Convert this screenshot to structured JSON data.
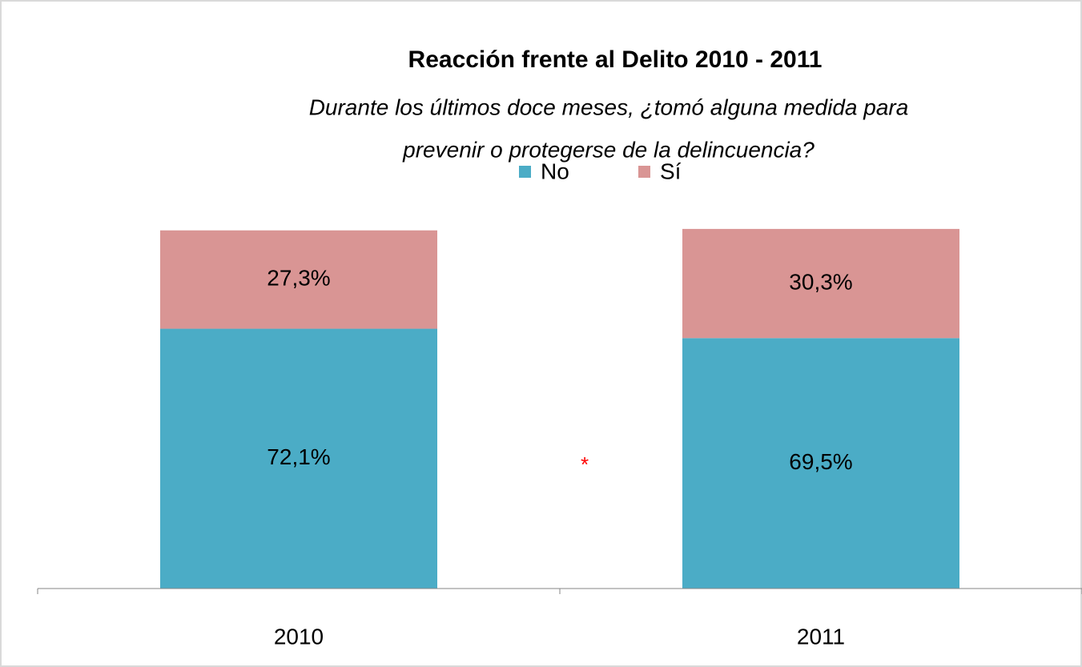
{
  "chart_data": {
    "type": "stacked_bar",
    "title": "Reacción frente al Delito 2010 - 2011",
    "subtitle": [
      "Durante los últimos doce meses, ¿tomó alguna medida para",
      "prevenir o protegerse de la delincuencia?"
    ],
    "categories": [
      "2010",
      "2011"
    ],
    "series": [
      {
        "name": "No",
        "color": "#4bacc6",
        "values": [
          72.1,
          69.5
        ],
        "value_labels": [
          "72,1%",
          "69,5%"
        ]
      },
      {
        "name": "Sí",
        "color": "#d99594",
        "values": [
          27.3,
          30.3
        ],
        "value_labels": [
          "27,3%",
          "30,3%"
        ]
      }
    ],
    "annotation": "*",
    "ylim": [
      0,
      100
    ],
    "legend": "top"
  }
}
